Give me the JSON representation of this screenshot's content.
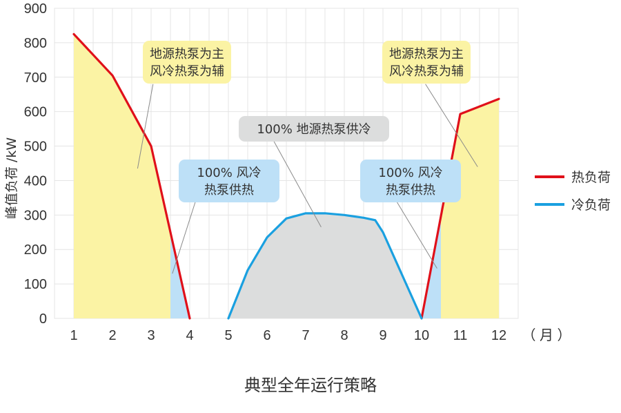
{
  "chart_data": {
    "type": "line",
    "title": "典型全年运行策略",
    "ylabel": "峰值负荷 /kW",
    "xunit": "（ 月 ）",
    "ylim": [
      0,
      900
    ],
    "xlim": [
      1,
      12
    ],
    "yticks": [
      "0",
      "100",
      "200",
      "300",
      "400",
      "500",
      "600",
      "700",
      "800",
      "900"
    ],
    "xticks": [
      "1",
      "2",
      "3",
      "4",
      "5",
      "6",
      "7",
      "8",
      "9",
      "10",
      "11",
      "12"
    ],
    "grid": true,
    "legend_position": "right",
    "series": [
      {
        "name": "热负荷",
        "color": "#e0101a",
        "segments": [
          [
            [
              1,
              825
            ],
            [
              2,
              705
            ],
            [
              3,
              500
            ],
            [
              4,
              0
            ]
          ],
          [
            [
              10,
              0
            ],
            [
              11,
              593
            ],
            [
              12,
              637
            ]
          ]
        ]
      },
      {
        "name": "冷负荷",
        "color": "#1aa0e0",
        "segments": [
          [
            [
              5,
              0
            ],
            [
              5.5,
              140
            ],
            [
              6,
              235
            ],
            [
              6.5,
              290
            ],
            [
              7,
              305
            ],
            [
              7.5,
              305
            ],
            [
              8,
              300
            ],
            [
              8.5,
              292
            ],
            [
              8.8,
              285
            ],
            [
              9,
              250
            ],
            [
              9.5,
              125
            ],
            [
              10,
              0
            ]
          ]
        ]
      }
    ],
    "regions": [
      {
        "kind": "yellow",
        "color": "#fbf3a4",
        "from": 1,
        "to": 3.5,
        "follows": "热负荷",
        "segment": 0
      },
      {
        "kind": "blue",
        "color": "#bde0f7",
        "from": 3.5,
        "to": 4,
        "follows": "热负荷",
        "segment": 0
      },
      {
        "kind": "blue",
        "color": "#bde0f7",
        "from": 10,
        "to": 10.5,
        "follows": "热负荷",
        "segment": 1
      },
      {
        "kind": "yellow",
        "color": "#fbf3a4",
        "from": 10.5,
        "to": 12,
        "follows": "热负荷",
        "segment": 1
      },
      {
        "kind": "gray",
        "color": "#dcdddd",
        "from": 5,
        "to": 10,
        "follows": "冷负荷",
        "segment": 0
      }
    ],
    "annotations": [
      {
        "id": "left-yellow",
        "lines": [
          "地源热泵为主",
          "风冷热泵为辅"
        ],
        "bg": "#fbf3a4",
        "target": [
          2.65,
          435
        ],
        "anchor": [
          3.05,
          680
        ]
      },
      {
        "id": "left-blue",
        "lines": [
          "100% 风冷",
          "热泵供热"
        ],
        "bg": "#bde0f7",
        "target": [
          3.55,
          130
        ],
        "anchor": [
          4.15,
          340
        ]
      },
      {
        "id": "center-gray",
        "lines": [
          "100% 地源热泵供冷"
        ],
        "bg": "#dcdddd",
        "target": [
          7.4,
          265
        ],
        "anchor": [
          6.05,
          540
        ]
      },
      {
        "id": "right-blue",
        "lines": [
          "100% 风冷",
          "热泵供热"
        ],
        "bg": "#bde0f7",
        "target": [
          10.4,
          145
        ],
        "anchor": [
          9.35,
          340
        ]
      },
      {
        "id": "right-yellow",
        "lines": [
          "地源热泵为主",
          "风冷热泵为辅"
        ],
        "bg": "#fbf3a4",
        "target": [
          11.45,
          440
        ],
        "anchor": [
          10.1,
          680
        ]
      }
    ]
  }
}
